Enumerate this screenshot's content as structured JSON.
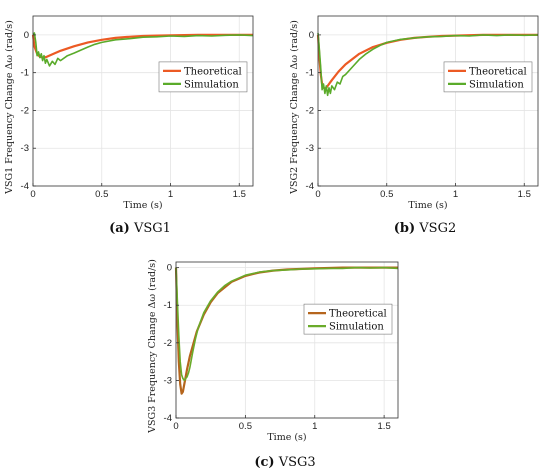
{
  "chart_data": [
    {
      "id": "a",
      "type": "line",
      "caption_label": "(a)",
      "caption_text": "VSG1",
      "xlabel": "Time (s)",
      "ylabel": "VSG1 Frequency Change Δω (rad/s)",
      "xlim": [
        0,
        1.6
      ],
      "ylim": [
        -4,
        0.5
      ],
      "xticks": [
        0,
        0.5,
        1,
        1.5
      ],
      "xtick_labels": [
        "0",
        "0.5",
        "1",
        "1.5"
      ],
      "yticks": [
        0,
        -1,
        -2,
        -3,
        -4
      ],
      "ytick_labels": [
        "0",
        "-1",
        "-2",
        "-3",
        "-4"
      ],
      "grid": true,
      "legend": "center-right",
      "series": [
        {
          "name": "Theoretical",
          "color": "#ec5a24",
          "x": [
            0,
            0.01,
            0.03,
            0.05,
            0.08,
            0.1,
            0.15,
            0.2,
            0.3,
            0.4,
            0.5,
            0.6,
            0.7,
            0.8,
            0.9,
            1.0,
            1.2,
            1.4,
            1.6
          ],
          "y": [
            0,
            -0.3,
            -0.5,
            -0.58,
            -0.6,
            -0.58,
            -0.5,
            -0.42,
            -0.3,
            -0.2,
            -0.13,
            -0.08,
            -0.05,
            -0.03,
            -0.02,
            -0.01,
            0,
            0,
            0
          ]
        },
        {
          "name": "Simulation",
          "color": "#5aab2a",
          "x": [
            0,
            0.01,
            0.02,
            0.03,
            0.04,
            0.05,
            0.06,
            0.07,
            0.08,
            0.09,
            0.1,
            0.12,
            0.14,
            0.16,
            0.18,
            0.2,
            0.25,
            0.3,
            0.35,
            0.4,
            0.45,
            0.5,
            0.6,
            0.7,
            0.8,
            0.9,
            1.0,
            1.1,
            1.2,
            1.3,
            1.4,
            1.5,
            1.6
          ],
          "y": [
            0,
            0.05,
            -0.2,
            -0.55,
            -0.45,
            -0.6,
            -0.5,
            -0.68,
            -0.55,
            -0.75,
            -0.65,
            -0.82,
            -0.7,
            -0.78,
            -0.62,
            -0.68,
            -0.55,
            -0.48,
            -0.4,
            -0.32,
            -0.25,
            -0.2,
            -0.13,
            -0.1,
            -0.06,
            -0.05,
            -0.03,
            -0.04,
            -0.02,
            -0.03,
            -0.01,
            0,
            -0.02
          ]
        }
      ]
    },
    {
      "id": "b",
      "type": "line",
      "caption_label": "(b)",
      "caption_text": "VSG2",
      "xlabel": "Time (s)",
      "ylabel": "VSG2 Frequency Change Δω (rad/s)",
      "xlim": [
        0,
        1.6
      ],
      "ylim": [
        -4,
        0.5
      ],
      "xticks": [
        0,
        0.5,
        1,
        1.5
      ],
      "xtick_labels": [
        "0",
        "0.5",
        "1",
        "1.5"
      ],
      "yticks": [
        0,
        -1,
        -2,
        -3,
        -4
      ],
      "ytick_labels": [
        "0",
        "-1",
        "-2",
        "-3",
        "-4"
      ],
      "grid": true,
      "legend": "center-right",
      "series": [
        {
          "name": "Theoretical",
          "color": "#ec5a24",
          "x": [
            0,
            0.01,
            0.02,
            0.03,
            0.04,
            0.05,
            0.06,
            0.08,
            0.1,
            0.15,
            0.2,
            0.3,
            0.4,
            0.5,
            0.6,
            0.7,
            0.8,
            0.9,
            1.0,
            1.2,
            1.4,
            1.6
          ],
          "y": [
            0,
            -0.6,
            -1.05,
            -1.3,
            -1.4,
            -1.42,
            -1.4,
            -1.3,
            -1.2,
            -0.97,
            -0.78,
            -0.5,
            -0.32,
            -0.21,
            -0.13,
            -0.08,
            -0.05,
            -0.03,
            -0.02,
            0,
            0,
            0
          ]
        },
        {
          "name": "Simulation",
          "color": "#5aab2a",
          "x": [
            0,
            0.01,
            0.02,
            0.03,
            0.04,
            0.05,
            0.06,
            0.07,
            0.08,
            0.09,
            0.1,
            0.12,
            0.14,
            0.16,
            0.18,
            0.2,
            0.25,
            0.3,
            0.35,
            0.4,
            0.45,
            0.5,
            0.6,
            0.7,
            0.8,
            0.9,
            1.0,
            1.1,
            1.2,
            1.3,
            1.4,
            1.5,
            1.6
          ],
          "y": [
            0.05,
            -0.4,
            -0.9,
            -1.45,
            -1.3,
            -1.55,
            -1.35,
            -1.6,
            -1.4,
            -1.55,
            -1.35,
            -1.45,
            -1.25,
            -1.3,
            -1.1,
            -1.05,
            -0.85,
            -0.65,
            -0.5,
            -0.38,
            -0.28,
            -0.2,
            -0.12,
            -0.08,
            -0.05,
            -0.04,
            -0.02,
            -0.03,
            0,
            -0.02,
            0,
            -0.01,
            0
          ]
        }
      ]
    },
    {
      "id": "c",
      "type": "line",
      "caption_label": "(c)",
      "caption_text": "VSG3",
      "xlabel": "Time (s)",
      "ylabel": "VSG3 Frequency Change Δω (rad/s)",
      "xlim": [
        0,
        1.6
      ],
      "ylim": [
        -4,
        0.15
      ],
      "xticks": [
        0,
        0.5,
        1,
        1.5
      ],
      "xtick_labels": [
        "0",
        "0.5",
        "1",
        "1.5"
      ],
      "yticks": [
        0,
        -1,
        -2,
        -3,
        -4
      ],
      "ytick_labels": [
        "0",
        "-1",
        "-2",
        "-3",
        "-4"
      ],
      "grid": true,
      "legend": "center-right",
      "series": [
        {
          "name": "Theoretical",
          "color": "#b5651d",
          "x": [
            0,
            0.01,
            0.02,
            0.03,
            0.04,
            0.05,
            0.06,
            0.08,
            0.1,
            0.15,
            0.2,
            0.25,
            0.3,
            0.4,
            0.5,
            0.6,
            0.7,
            0.8,
            1.0,
            1.2,
            1.4,
            1.6
          ],
          "y": [
            0,
            -1.4,
            -2.5,
            -3.1,
            -3.35,
            -3.3,
            -3.1,
            -2.7,
            -2.35,
            -1.7,
            -1.25,
            -0.92,
            -0.68,
            -0.38,
            -0.22,
            -0.13,
            -0.08,
            -0.05,
            -0.02,
            0,
            0,
            0
          ]
        },
        {
          "name": "Simulation",
          "color": "#6aab2a",
          "x": [
            0,
            0.01,
            0.02,
            0.03,
            0.04,
            0.05,
            0.06,
            0.07,
            0.08,
            0.09,
            0.1,
            0.12,
            0.14,
            0.16,
            0.2,
            0.25,
            0.3,
            0.35,
            0.4,
            0.5,
            0.6,
            0.7,
            0.8,
            0.9,
            1.0,
            1.1,
            1.2,
            1.3,
            1.4,
            1.5,
            1.6
          ],
          "y": [
            0,
            -0.9,
            -1.8,
            -2.5,
            -2.85,
            -2.95,
            -3.0,
            -2.95,
            -2.9,
            -2.8,
            -2.65,
            -2.25,
            -1.9,
            -1.6,
            -1.2,
            -0.88,
            -0.65,
            -0.48,
            -0.36,
            -0.2,
            -0.12,
            -0.08,
            -0.06,
            -0.04,
            -0.03,
            -0.02,
            -0.02,
            0,
            -0.01,
            0,
            -0.02
          ]
        }
      ]
    }
  ]
}
